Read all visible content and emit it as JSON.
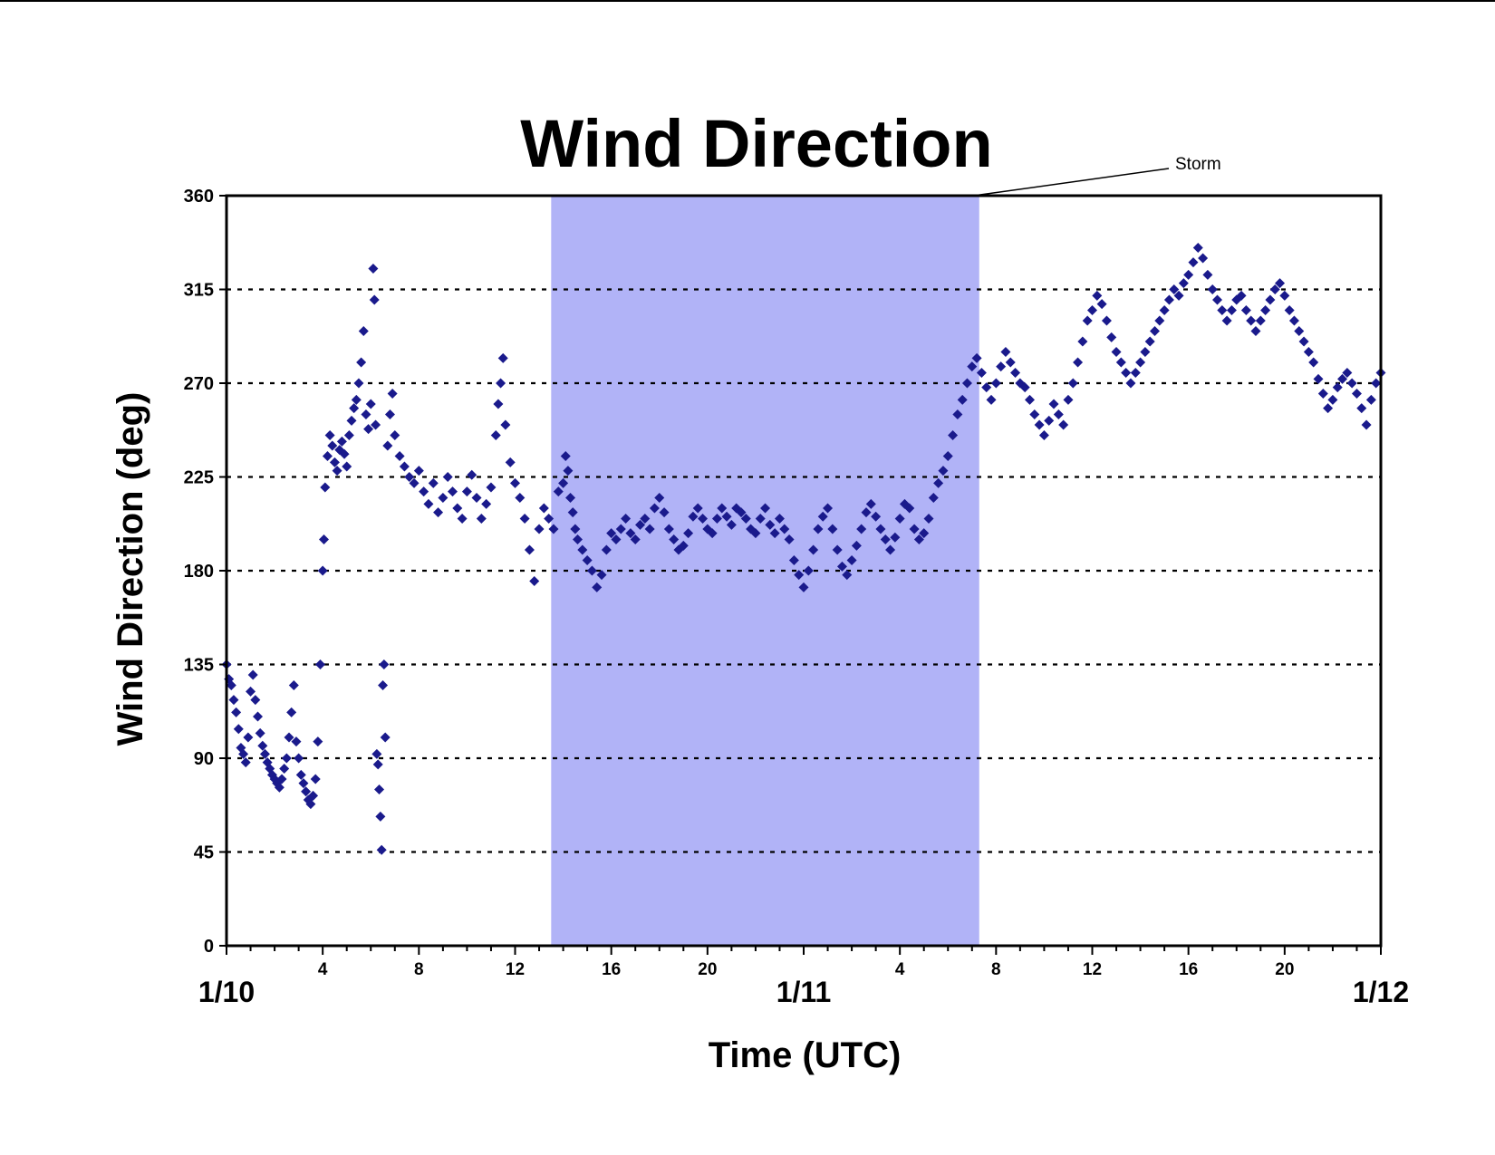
{
  "colors": {
    "marker": "#1a1a8c",
    "storm_band": "#b1b3f7",
    "grid": "#000000",
    "axis": "#000000"
  },
  "chart_data": {
    "type": "scatter",
    "title": "Wind Direction",
    "xlabel": "Time (UTC)",
    "ylabel": "Wind Direction (deg)",
    "x_unit": "hours since 1/10 00:00 UTC",
    "xlim": [
      0,
      48
    ],
    "ylim": [
      0,
      360
    ],
    "grid": "horizontal dotted lines at every y tick",
    "marker": "diamond",
    "yticks": [
      "0",
      "45",
      "90",
      "135",
      "180",
      "225",
      "270",
      "315",
      "360"
    ],
    "xticks_minor": [
      {
        "hour": 4,
        "label": "4"
      },
      {
        "hour": 8,
        "label": "8"
      },
      {
        "hour": 12,
        "label": "12"
      },
      {
        "hour": 16,
        "label": "16"
      },
      {
        "hour": 20,
        "label": "20"
      },
      {
        "hour": 28,
        "label": "4"
      },
      {
        "hour": 32,
        "label": "8"
      },
      {
        "hour": 36,
        "label": "12"
      },
      {
        "hour": 40,
        "label": "16"
      },
      {
        "hour": 44,
        "label": "20"
      }
    ],
    "xticks_major": [
      {
        "hour": 0,
        "label": "1/10"
      },
      {
        "hour": 24,
        "label": "1/11"
      },
      {
        "hour": 48,
        "label": "1/12"
      }
    ],
    "shaded_region": {
      "label": "Storm",
      "x_start": 13.5,
      "x_end": 31.3
    },
    "annotation": {
      "text": "Storm"
    },
    "series": [
      {
        "points": [
          [
            0.0,
            135
          ],
          [
            0.1,
            128
          ],
          [
            0.2,
            125
          ],
          [
            0.3,
            118
          ],
          [
            0.4,
            112
          ],
          [
            0.5,
            104
          ],
          [
            0.6,
            95
          ],
          [
            0.7,
            92
          ],
          [
            0.8,
            88
          ],
          [
            0.9,
            100
          ],
          [
            1.0,
            122
          ],
          [
            1.1,
            130
          ],
          [
            1.2,
            118
          ],
          [
            1.3,
            110
          ],
          [
            1.4,
            102
          ],
          [
            1.5,
            96
          ],
          [
            1.6,
            92
          ],
          [
            1.7,
            88
          ],
          [
            1.8,
            85
          ],
          [
            1.9,
            82
          ],
          [
            2.0,
            80
          ],
          [
            2.1,
            78
          ],
          [
            2.2,
            76
          ],
          [
            2.3,
            80
          ],
          [
            2.4,
            85
          ],
          [
            2.5,
            90
          ],
          [
            2.6,
            100
          ],
          [
            2.7,
            112
          ],
          [
            2.8,
            125
          ],
          [
            2.9,
            98
          ],
          [
            3.0,
            90
          ],
          [
            3.1,
            82
          ],
          [
            3.2,
            78
          ],
          [
            3.3,
            74
          ],
          [
            3.4,
            70
          ],
          [
            3.5,
            68
          ],
          [
            3.6,
            72
          ],
          [
            3.7,
            80
          ],
          [
            3.8,
            98
          ],
          [
            3.9,
            135
          ],
          [
            4.0,
            180
          ],
          [
            4.05,
            195
          ],
          [
            4.1,
            220
          ],
          [
            4.2,
            235
          ],
          [
            4.3,
            245
          ],
          [
            4.4,
            240
          ],
          [
            4.5,
            232
          ],
          [
            4.6,
            228
          ],
          [
            4.7,
            238
          ],
          [
            4.8,
            242
          ],
          [
            4.9,
            236
          ],
          [
            5.0,
            230
          ],
          [
            5.1,
            245
          ],
          [
            5.2,
            252
          ],
          [
            5.3,
            258
          ],
          [
            5.4,
            262
          ],
          [
            5.5,
            270
          ],
          [
            5.6,
            280
          ],
          [
            5.7,
            295
          ],
          [
            5.8,
            255
          ],
          [
            5.9,
            248
          ],
          [
            6.0,
            260
          ],
          [
            6.1,
            325
          ],
          [
            6.15,
            310
          ],
          [
            6.2,
            250
          ],
          [
            6.25,
            92
          ],
          [
            6.3,
            87
          ],
          [
            6.35,
            75
          ],
          [
            6.4,
            62
          ],
          [
            6.45,
            46
          ],
          [
            6.5,
            125
          ],
          [
            6.55,
            135
          ],
          [
            6.6,
            100
          ],
          [
            6.7,
            240
          ],
          [
            6.8,
            255
          ],
          [
            6.9,
            265
          ],
          [
            7.0,
            245
          ],
          [
            7.2,
            235
          ],
          [
            7.4,
            230
          ],
          [
            7.6,
            225
          ],
          [
            7.8,
            222
          ],
          [
            8.0,
            228
          ],
          [
            8.2,
            218
          ],
          [
            8.4,
            212
          ],
          [
            8.6,
            222
          ],
          [
            8.8,
            208
          ],
          [
            9.0,
            215
          ],
          [
            9.2,
            225
          ],
          [
            9.4,
            218
          ],
          [
            9.6,
            210
          ],
          [
            9.8,
            205
          ],
          [
            10.0,
            218
          ],
          [
            10.2,
            226
          ],
          [
            10.4,
            215
          ],
          [
            10.6,
            205
          ],
          [
            10.8,
            212
          ],
          [
            11.0,
            220
          ],
          [
            11.2,
            245
          ],
          [
            11.3,
            260
          ],
          [
            11.4,
            270
          ],
          [
            11.5,
            282
          ],
          [
            11.6,
            250
          ],
          [
            11.8,
            232
          ],
          [
            12.0,
            222
          ],
          [
            12.2,
            215
          ],
          [
            12.4,
            205
          ],
          [
            12.6,
            190
          ],
          [
            12.8,
            175
          ],
          [
            13.0,
            200
          ],
          [
            13.2,
            210
          ],
          [
            13.4,
            205
          ],
          [
            13.6,
            200
          ],
          [
            13.8,
            218
          ],
          [
            14.0,
            222
          ],
          [
            14.1,
            235
          ],
          [
            14.2,
            228
          ],
          [
            14.3,
            215
          ],
          [
            14.4,
            208
          ],
          [
            14.5,
            200
          ],
          [
            14.6,
            195
          ],
          [
            14.8,
            190
          ],
          [
            15.0,
            185
          ],
          [
            15.2,
            180
          ],
          [
            15.4,
            172
          ],
          [
            15.6,
            178
          ],
          [
            15.8,
            190
          ],
          [
            16.0,
            198
          ],
          [
            16.2,
            195
          ],
          [
            16.4,
            200
          ],
          [
            16.6,
            205
          ],
          [
            16.8,
            198
          ],
          [
            17.0,
            195
          ],
          [
            17.2,
            202
          ],
          [
            17.4,
            205
          ],
          [
            17.6,
            200
          ],
          [
            17.8,
            210
          ],
          [
            18.0,
            215
          ],
          [
            18.2,
            208
          ],
          [
            18.4,
            200
          ],
          [
            18.6,
            195
          ],
          [
            18.8,
            190
          ],
          [
            19.0,
            192
          ],
          [
            19.2,
            198
          ],
          [
            19.4,
            206
          ],
          [
            19.6,
            210
          ],
          [
            19.8,
            205
          ],
          [
            20.0,
            200
          ],
          [
            20.2,
            198
          ],
          [
            20.4,
            205
          ],
          [
            20.6,
            210
          ],
          [
            20.8,
            206
          ],
          [
            21.0,
            202
          ],
          [
            21.2,
            210
          ],
          [
            21.4,
            208
          ],
          [
            21.6,
            205
          ],
          [
            21.8,
            200
          ],
          [
            22.0,
            198
          ],
          [
            22.2,
            205
          ],
          [
            22.4,
            210
          ],
          [
            22.6,
            202
          ],
          [
            22.8,
            198
          ],
          [
            23.0,
            205
          ],
          [
            23.2,
            200
          ],
          [
            23.4,
            195
          ],
          [
            23.6,
            185
          ],
          [
            23.8,
            178
          ],
          [
            24.0,
            172
          ],
          [
            24.2,
            180
          ],
          [
            24.4,
            190
          ],
          [
            24.6,
            200
          ],
          [
            24.8,
            206
          ],
          [
            25.0,
            210
          ],
          [
            25.2,
            200
          ],
          [
            25.4,
            190
          ],
          [
            25.6,
            182
          ],
          [
            25.8,
            178
          ],
          [
            26.0,
            185
          ],
          [
            26.2,
            192
          ],
          [
            26.4,
            200
          ],
          [
            26.6,
            208
          ],
          [
            26.8,
            212
          ],
          [
            27.0,
            206
          ],
          [
            27.2,
            200
          ],
          [
            27.4,
            195
          ],
          [
            27.6,
            190
          ],
          [
            27.8,
            196
          ],
          [
            28.0,
            205
          ],
          [
            28.2,
            212
          ],
          [
            28.4,
            210
          ],
          [
            28.6,
            200
          ],
          [
            28.8,
            195
          ],
          [
            29.0,
            198
          ],
          [
            29.2,
            205
          ],
          [
            29.4,
            215
          ],
          [
            29.6,
            222
          ],
          [
            29.8,
            228
          ],
          [
            30.0,
            235
          ],
          [
            30.2,
            245
          ],
          [
            30.4,
            255
          ],
          [
            30.6,
            262
          ],
          [
            30.8,
            270
          ],
          [
            31.0,
            278
          ],
          [
            31.2,
            282
          ],
          [
            31.4,
            275
          ],
          [
            31.6,
            268
          ],
          [
            31.8,
            262
          ],
          [
            32.0,
            270
          ],
          [
            32.2,
            278
          ],
          [
            32.4,
            285
          ],
          [
            32.6,
            280
          ],
          [
            32.8,
            275
          ],
          [
            33.0,
            270
          ],
          [
            33.2,
            268
          ],
          [
            33.4,
            262
          ],
          [
            33.6,
            255
          ],
          [
            33.8,
            250
          ],
          [
            34.0,
            245
          ],
          [
            34.2,
            252
          ],
          [
            34.4,
            260
          ],
          [
            34.6,
            255
          ],
          [
            34.8,
            250
          ],
          [
            35.0,
            262
          ],
          [
            35.2,
            270
          ],
          [
            35.4,
            280
          ],
          [
            35.6,
            290
          ],
          [
            35.8,
            300
          ],
          [
            36.0,
            305
          ],
          [
            36.2,
            312
          ],
          [
            36.4,
            308
          ],
          [
            36.6,
            300
          ],
          [
            36.8,
            292
          ],
          [
            37.0,
            285
          ],
          [
            37.2,
            280
          ],
          [
            37.4,
            275
          ],
          [
            37.6,
            270
          ],
          [
            37.8,
            275
          ],
          [
            38.0,
            280
          ],
          [
            38.2,
            285
          ],
          [
            38.4,
            290
          ],
          [
            38.6,
            295
          ],
          [
            38.8,
            300
          ],
          [
            39.0,
            305
          ],
          [
            39.2,
            310
          ],
          [
            39.4,
            315
          ],
          [
            39.6,
            312
          ],
          [
            39.8,
            318
          ],
          [
            40.0,
            322
          ],
          [
            40.2,
            328
          ],
          [
            40.4,
            335
          ],
          [
            40.6,
            330
          ],
          [
            40.8,
            322
          ],
          [
            41.0,
            315
          ],
          [
            41.2,
            310
          ],
          [
            41.4,
            305
          ],
          [
            41.6,
            300
          ],
          [
            41.8,
            305
          ],
          [
            42.0,
            310
          ],
          [
            42.2,
            312
          ],
          [
            42.4,
            305
          ],
          [
            42.6,
            300
          ],
          [
            42.8,
            295
          ],
          [
            43.0,
            300
          ],
          [
            43.2,
            305
          ],
          [
            43.4,
            310
          ],
          [
            43.6,
            315
          ],
          [
            43.8,
            318
          ],
          [
            44.0,
            312
          ],
          [
            44.2,
            305
          ],
          [
            44.4,
            300
          ],
          [
            44.6,
            295
          ],
          [
            44.8,
            290
          ],
          [
            45.0,
            285
          ],
          [
            45.2,
            280
          ],
          [
            45.4,
            272
          ],
          [
            45.6,
            265
          ],
          [
            45.8,
            258
          ],
          [
            46.0,
            262
          ],
          [
            46.2,
            268
          ],
          [
            46.4,
            272
          ],
          [
            46.6,
            275
          ],
          [
            46.8,
            270
          ],
          [
            47.0,
            265
          ],
          [
            47.2,
            258
          ],
          [
            47.4,
            250
          ],
          [
            47.6,
            262
          ],
          [
            47.8,
            270
          ],
          [
            48.0,
            275
          ]
        ]
      }
    ]
  }
}
